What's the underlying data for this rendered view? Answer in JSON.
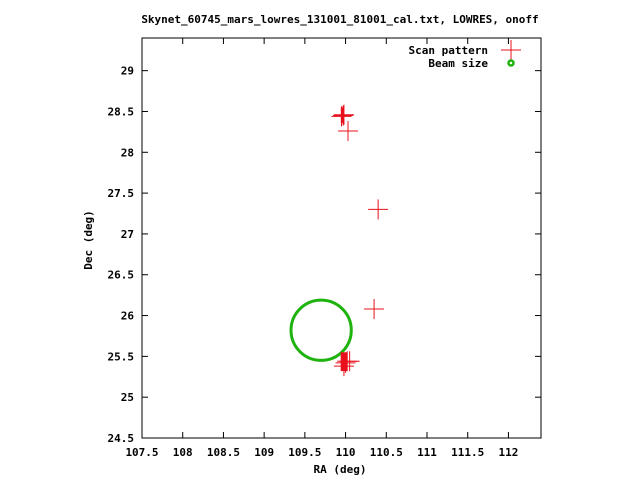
{
  "chart_data": {
    "type": "scatter",
    "title": "Skynet_60745_mars_lowres_131001_81001_cal.txt, LOWRES, onoff",
    "xlabel": "RA (deg)",
    "ylabel": "Dec (deg)",
    "xlim": [
      107.5,
      112.4
    ],
    "ylim": [
      24.5,
      29.4
    ],
    "xticks": [
      107.5,
      108,
      108.5,
      109,
      109.5,
      110,
      110.5,
      111,
      111.5,
      112
    ],
    "yticks": [
      24.5,
      25,
      25.5,
      26,
      26.5,
      27,
      27.5,
      28,
      28.5,
      29
    ],
    "grid": false,
    "legend_position": "top-right",
    "series": [
      {
        "name": "Scan pattern",
        "marker": "plus",
        "color": "#e8111b",
        "points": [
          [
            109.95,
            28.44
          ],
          [
            109.97,
            28.45
          ],
          [
            109.98,
            28.46
          ],
          [
            110.03,
            28.26
          ],
          [
            110.4,
            27.3
          ],
          [
            110.35,
            26.08
          ],
          [
            109.98,
            25.38
          ],
          [
            110.0,
            25.42
          ],
          [
            110.02,
            25.44
          ],
          [
            110.05,
            25.44
          ]
        ]
      },
      {
        "name": "Beam size",
        "marker": "circle-outline",
        "color": "#1fb30f",
        "center": [
          109.7,
          25.82
        ],
        "radius_deg": 0.37
      }
    ],
    "extra_marks": [
      {
        "kind": "red-bar",
        "x": 109.96,
        "y_from": 28.36,
        "y_to": 28.55
      },
      {
        "kind": "red-block",
        "x_from": 109.94,
        "x_to": 110.02,
        "y_from": 25.32,
        "y_to": 25.55
      }
    ]
  }
}
